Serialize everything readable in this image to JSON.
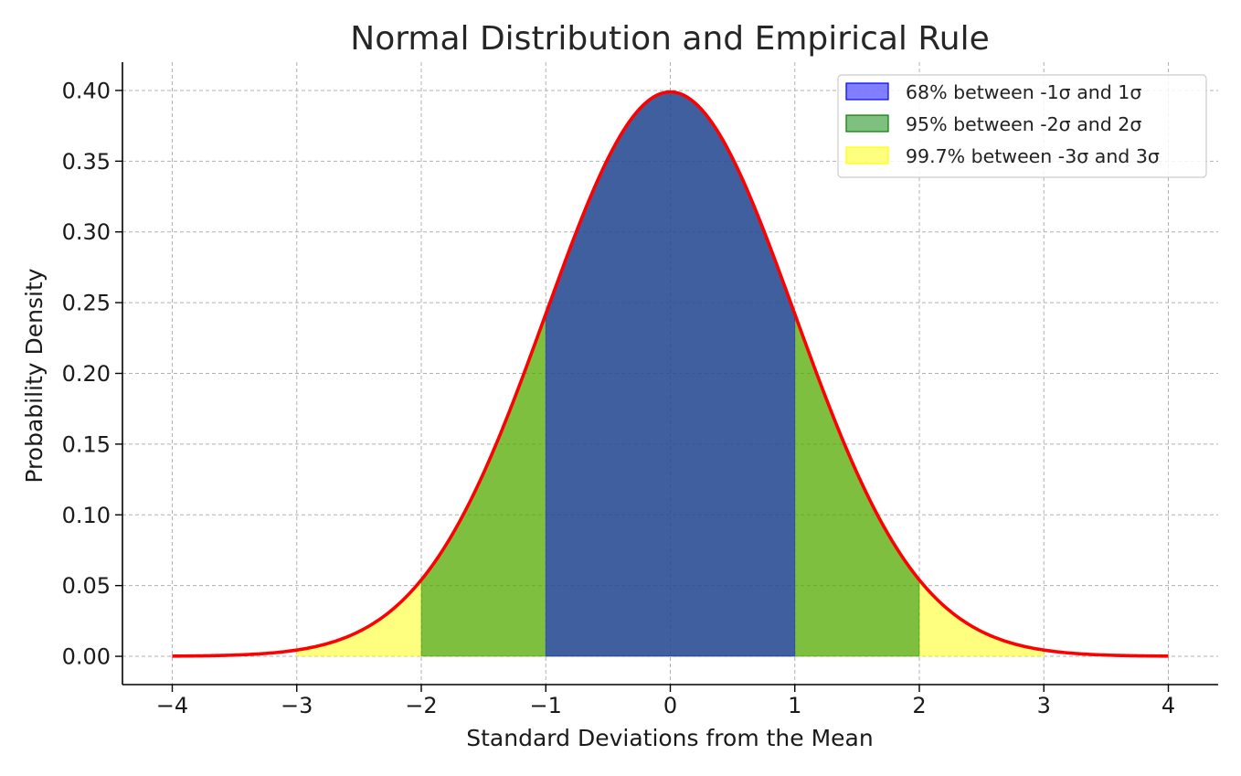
{
  "chart_data": {
    "type": "area",
    "title": "Normal Distribution and Empirical Rule",
    "xlabel": "Standard Deviations from the Mean",
    "ylabel": "Probability Density",
    "xlim": [
      -4.4,
      4.4
    ],
    "ylim": [
      -0.02,
      0.42
    ],
    "xticks": [
      -4,
      -3,
      -2,
      -1,
      0,
      1,
      2,
      3,
      4
    ],
    "xtick_labels": [
      "−4",
      "−3",
      "−2",
      "−1",
      "0",
      "1",
      "2",
      "3",
      "4"
    ],
    "yticks": [
      0.0,
      0.05,
      0.1,
      0.15,
      0.2,
      0.25,
      0.3,
      0.35,
      0.4
    ],
    "ytick_labels": [
      "0.00",
      "0.05",
      "0.10",
      "0.15",
      "0.20",
      "0.25",
      "0.30",
      "0.35",
      "0.40"
    ],
    "grid": true,
    "legend_position": "top-right",
    "curve": {
      "x_range": [
        -4,
        4
      ],
      "mean": 0,
      "sd": 1,
      "color": "#ff0000"
    },
    "bands": [
      {
        "label": "68% between -1σ and 1σ",
        "range": [
          -1,
          1
        ],
        "color": "#0000ff",
        "opacity": 0.5
      },
      {
        "label": "95% between -2σ and 2σ",
        "range": [
          -2,
          2
        ],
        "color": "#008000",
        "opacity": 0.5
      },
      {
        "label": "99.7% between -3σ and 3σ",
        "range": [
          -3,
          3
        ],
        "color": "#ffff00",
        "opacity": 0.5
      }
    ]
  }
}
